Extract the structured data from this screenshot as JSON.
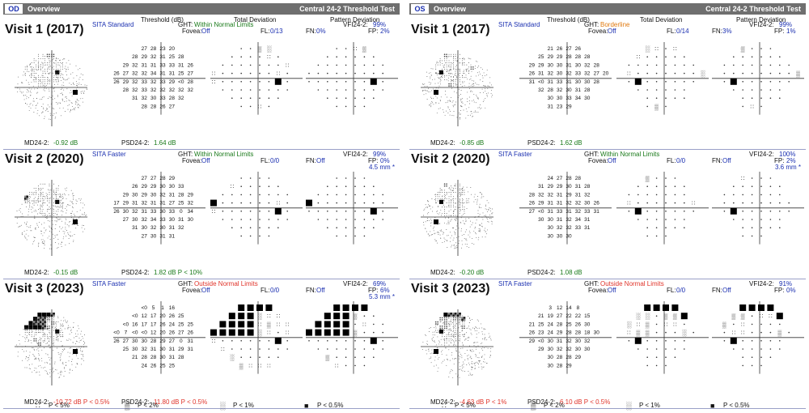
{
  "legend": {
    "p5": "P < 5%",
    "p2": "P < 2%",
    "p1": "P < 1%",
    "p05": "P < 0.5%"
  },
  "eyes": [
    {
      "eye": "OD",
      "overview": "Overview",
      "test_name": "Central 24-2 Threshold Test",
      "visits": [
        {
          "title": "Visit 1 (2017)",
          "strategy": "SITA Standard",
          "col_threshold": "Threshold (dB)",
          "col_total": "Total Deviation",
          "col_pattern": "Pattern Deviation",
          "ght_label": "GHT:",
          "ght_value": "Within Normal Limits",
          "ght_color": "green",
          "fovea_label": "Fovea:",
          "fovea_value": "Off",
          "fl_label": "FL:",
          "fl_value": "0/13",
          "fn_label": "FN:",
          "fn_value": "0%",
          "vfi_label": "VFI24-2:",
          "vfi_value": "99%",
          "fp_label": "FP:",
          "fp_value": "2%",
          "pupil": "",
          "md_label": "MD24-2:",
          "md_value": "-0.92 dB",
          "md_color": "green",
          "psd_label": "PSD24-2:",
          "psd_value": "1.64 dB",
          "psd_color": "green",
          "threshold_rows": [
            [
              "",
              "",
              "",
              "27",
              "28",
              "23",
              "20",
              "",
              "",
              ""
            ],
            [
              "",
              "",
              "28",
              "29",
              "32",
              "31",
              "25",
              "28",
              "",
              ""
            ],
            [
              "",
              "29",
              "32",
              "31",
              "31",
              "33",
              "33",
              "31",
              "26",
              ""
            ],
            [
              "26",
              "27",
              "32",
              "32",
              "34",
              "31",
              "31",
              "25",
              "27",
              ""
            ],
            [
              "26",
              "29",
              "32",
              "33",
              "32",
              "33",
              "29",
              "<0",
              "28",
              ""
            ],
            [
              "",
              "28",
              "32",
              "33",
              "32",
              "32",
              "32",
              "32",
              "32",
              ""
            ],
            [
              "",
              "",
              "31",
              "32",
              "30",
              "33",
              "28",
              "32",
              "",
              ""
            ],
            [
              "",
              "",
              "",
              "28",
              "28",
              "26",
              "27",
              "",
              "",
              ""
            ]
          ]
        },
        {
          "title": "Visit 2 (2020)",
          "strategy": "SITA Faster",
          "col_threshold": "",
          "col_total": "",
          "col_pattern": "",
          "ght_label": "GHT:",
          "ght_value": "Within Normal Limits",
          "ght_color": "green",
          "fovea_label": "Fovea:",
          "fovea_value": "Off",
          "fl_label": "FL:",
          "fl_value": "0/0",
          "fn_label": "FN:",
          "fn_value": "Off",
          "vfi_label": "VFI24-2:",
          "vfi_value": "99%",
          "fp_label": "FP:",
          "fp_value": "0%",
          "pupil": "4.5 mm *",
          "md_label": "MD24-2:",
          "md_value": "-0.15 dB",
          "md_color": "green",
          "psd_label": "PSD24-2:",
          "psd_value": "1.82 dB P < 10%",
          "psd_color": "green",
          "threshold_rows": [
            [
              "",
              "",
              "",
              "27",
              "27",
              "28",
              "29",
              "",
              "",
              ""
            ],
            [
              "",
              "",
              "26",
              "29",
              "29",
              "30",
              "30",
              "33",
              "",
              ""
            ],
            [
              "",
              "29",
              "30",
              "29",
              "30",
              "32",
              "31",
              "28",
              "29",
              ""
            ],
            [
              "17",
              "29",
              "31",
              "32",
              "31",
              "31",
              "27",
              "25",
              "32",
              ""
            ],
            [
              "26",
              "30",
              "32",
              "31",
              "33",
              "30",
              "33",
              "0",
              "34",
              ""
            ],
            [
              "",
              "27",
              "30",
              "32",
              "34",
              "33",
              "30",
              "31",
              "30",
              ""
            ],
            [
              "",
              "",
              "31",
              "30",
              "32",
              "30",
              "31",
              "32",
              "",
              ""
            ],
            [
              "",
              "",
              "",
              "27",
              "30",
              "31",
              "31",
              "",
              "",
              ""
            ]
          ]
        },
        {
          "title": "Visit 3 (2023)",
          "strategy": "SITA Faster",
          "col_threshold": "",
          "col_total": "",
          "col_pattern": "",
          "ght_label": "GHT:",
          "ght_value": "Outside Normal Limits",
          "ght_color": "red",
          "fovea_label": "Fovea:",
          "fovea_value": "Off",
          "fl_label": "FL:",
          "fl_value": "0/0",
          "fn_label": "FN:",
          "fn_value": "Off",
          "vfi_label": "VFI24-2:",
          "vfi_value": "69%",
          "fp_label": "FP:",
          "fp_value": "6%",
          "pupil": "5.3 mm *",
          "md_label": "MD24-2:",
          "md_value": "-10.72 dB P < 0.5%",
          "md_color": "red",
          "psd_label": "PSD24-2:",
          "psd_value": "11.80 dB P < 0.5%",
          "psd_color": "red",
          "threshold_rows": [
            [
              "",
              "",
              "",
              "<0",
              "5",
              "1",
              "16",
              "",
              "",
              ""
            ],
            [
              "",
              "",
              "<0",
              "12",
              "17",
              "20",
              "26",
              "25",
              "",
              ""
            ],
            [
              "",
              "<0",
              "16",
              "17",
              "17",
              "26",
              "24",
              "25",
              "25",
              ""
            ],
            [
              "<0",
              "7",
              "<0",
              "<0",
              "12",
              "20",
              "26",
              "27",
              "26",
              ""
            ],
            [
              "26",
              "27",
              "30",
              "30",
              "28",
              "29",
              "27",
              "0",
              "31",
              ""
            ],
            [
              "",
              "25",
              "30",
              "32",
              "31",
              "30",
              "31",
              "29",
              "31",
              ""
            ],
            [
              "",
              "",
              "21",
              "28",
              "28",
              "30",
              "31",
              "28",
              "",
              ""
            ],
            [
              "",
              "",
              "",
              "24",
              "26",
              "25",
              "25",
              "",
              "",
              ""
            ]
          ]
        }
      ]
    },
    {
      "eye": "OS",
      "overview": "Overview",
      "test_name": "Central 24-2 Threshold Test",
      "visits": [
        {
          "title": "Visit 1 (2017)",
          "strategy": "SITA Standard",
          "col_threshold": "Threshold (dB)",
          "col_total": "Total Deviation",
          "col_pattern": "Pattern Deviation",
          "ght_label": "GHT:",
          "ght_value": "Borderline",
          "ght_color": "orange",
          "fovea_label": "Fovea:",
          "fovea_value": "Off",
          "fl_label": "FL:",
          "fl_value": "0/14",
          "fn_label": "FN:",
          "fn_value": "3%",
          "vfi_label": "VFI24-2:",
          "vfi_value": "99%",
          "fp_label": "FP:",
          "fp_value": "1%",
          "pupil": "",
          "md_label": "MD24-2:",
          "md_value": "-0.85 dB",
          "md_color": "green",
          "psd_label": "PSD24-2:",
          "psd_value": "1.62 dB",
          "psd_color": "green",
          "threshold_rows": [
            [
              "",
              "",
              "",
              "21",
              "26",
              "27",
              "26",
              "",
              "",
              ""
            ],
            [
              "",
              "",
              "25",
              "29",
              "29",
              "28",
              "28",
              "28",
              "",
              ""
            ],
            [
              "",
              "29",
              "29",
              "30",
              "30",
              "31",
              "30",
              "32",
              "28",
              ""
            ],
            [
              "",
              "26",
              "31",
              "32",
              "30",
              "32",
              "33",
              "32",
              "27",
              "20"
            ],
            [
              "",
              "31",
              "<0",
              "31",
              "33",
              "31",
              "30",
              "30",
              "28",
              ""
            ],
            [
              "",
              "",
              "32",
              "28",
              "32",
              "30",
              "31",
              "28",
              "",
              ""
            ],
            [
              "",
              "",
              "",
              "30",
              "30",
              "33",
              "34",
              "30",
              "",
              ""
            ],
            [
              "",
              "",
              "",
              "31",
              "23",
              "29",
              "",
              "",
              "",
              ""
            ]
          ]
        },
        {
          "title": "Visit 2 (2020)",
          "strategy": "SITA Faster",
          "col_threshold": "",
          "col_total": "",
          "col_pattern": "",
          "ght_label": "GHT:",
          "ght_value": "Within Normal Limits",
          "ght_color": "green",
          "fovea_label": "Fovea:",
          "fovea_value": "Off",
          "fl_label": "FL:",
          "fl_value": "0/0",
          "fn_label": "FN:",
          "fn_value": "Off",
          "vfi_label": "VFI24-2:",
          "vfi_value": "100%",
          "fp_label": "FP:",
          "fp_value": "2%",
          "pupil": "3.6 mm *",
          "md_label": "MD24-2:",
          "md_value": "-0.20 dB",
          "md_color": "green",
          "psd_label": "PSD24-2:",
          "psd_value": "1.08 dB",
          "psd_color": "green",
          "threshold_rows": [
            [
              "",
              "",
              "",
              "24",
              "27",
              "28",
              "28",
              "",
              "",
              ""
            ],
            [
              "",
              "",
              "31",
              "29",
              "29",
              "30",
              "31",
              "28",
              "",
              ""
            ],
            [
              "",
              "28",
              "32",
              "32",
              "31",
              "29",
              "31",
              "32",
              "",
              ""
            ],
            [
              "",
              "26",
              "29",
              "31",
              "31",
              "32",
              "32",
              "30",
              "26",
              ""
            ],
            [
              "",
              "27",
              "<0",
              "31",
              "33",
              "31",
              "32",
              "33",
              "31",
              ""
            ],
            [
              "",
              "",
              "30",
              "30",
              "31",
              "32",
              "34",
              "31",
              "",
              ""
            ],
            [
              "",
              "",
              "",
              "30",
              "32",
              "32",
              "33",
              "31",
              "",
              ""
            ],
            [
              "",
              "",
              "",
              "30",
              "30",
              "30",
              "",
              "",
              "",
              ""
            ]
          ]
        },
        {
          "title": "Visit 3 (2023)",
          "strategy": "SITA Faster",
          "col_threshold": "",
          "col_total": "",
          "col_pattern": "",
          "ght_label": "GHT:",
          "ght_value": "Outside Normal Limits",
          "ght_color": "red",
          "fovea_label": "Fovea:",
          "fovea_value": "Off",
          "fl_label": "FL:",
          "fl_value": "0/0",
          "fn_label": "FN:",
          "fn_value": "Off",
          "vfi_label": "VFI24-2:",
          "vfi_value": "91%",
          "fp_label": "FP:",
          "fp_value": "0%",
          "pupil": "",
          "md_label": "MD24-2:",
          "md_value": "-4.63 dB P < 1%",
          "md_color": "red",
          "psd_label": "PSD24-2:",
          "psd_value": "6.10 dB P < 0.5%",
          "psd_color": "red",
          "threshold_rows": [
            [
              "",
              "",
              "",
              "3",
              "12",
              "14",
              "8",
              "",
              "",
              ""
            ],
            [
              "",
              "",
              "21",
              "19",
              "27",
              "22",
              "22",
              "15",
              "",
              ""
            ],
            [
              "",
              "21",
              "25",
              "24",
              "28",
              "25",
              "26",
              "30",
              "",
              ""
            ],
            [
              "",
              "26",
              "23",
              "24",
              "29",
              "28",
              "28",
              "18",
              "30",
              ""
            ],
            [
              "",
              "29",
              "<0",
              "30",
              "31",
              "32",
              "30",
              "32",
              "",
              ""
            ],
            [
              "",
              "",
              "29",
              "30",
              "32",
              "32",
              "30",
              "30",
              "",
              ""
            ],
            [
              "",
              "",
              "",
              "30",
              "28",
              "28",
              "29",
              "",
              "",
              ""
            ],
            [
              "",
              "",
              "",
              "30",
              "28",
              "29",
              "",
              "",
              "",
              ""
            ]
          ]
        }
      ]
    }
  ]
}
